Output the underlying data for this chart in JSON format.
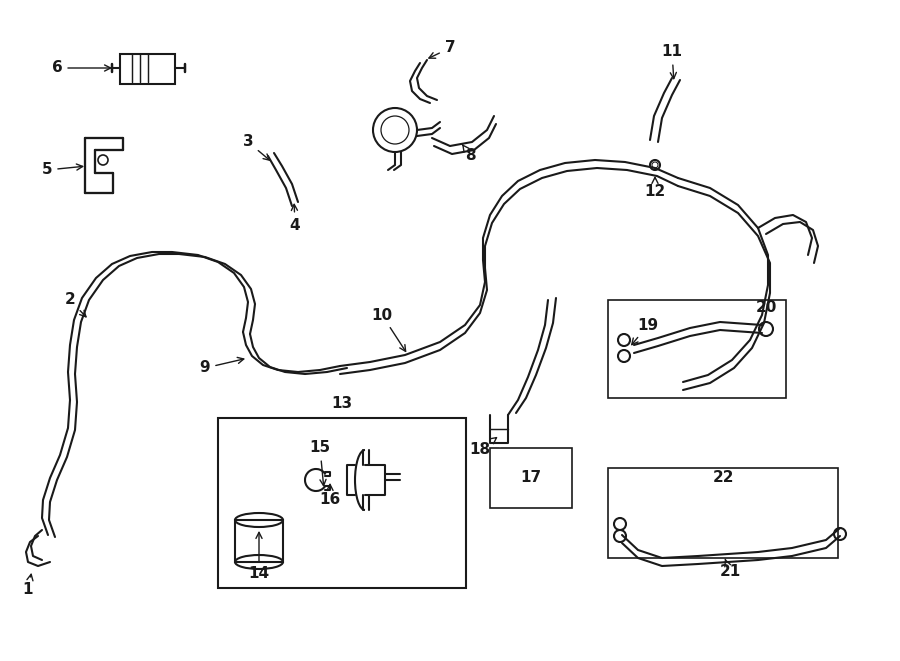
{
  "bg_color": "#ffffff",
  "line_color": "#1a1a1a",
  "lw": 1.5,
  "fs": 11,
  "fig_w": 9.0,
  "fig_h": 6.61,
  "dpi": 100
}
